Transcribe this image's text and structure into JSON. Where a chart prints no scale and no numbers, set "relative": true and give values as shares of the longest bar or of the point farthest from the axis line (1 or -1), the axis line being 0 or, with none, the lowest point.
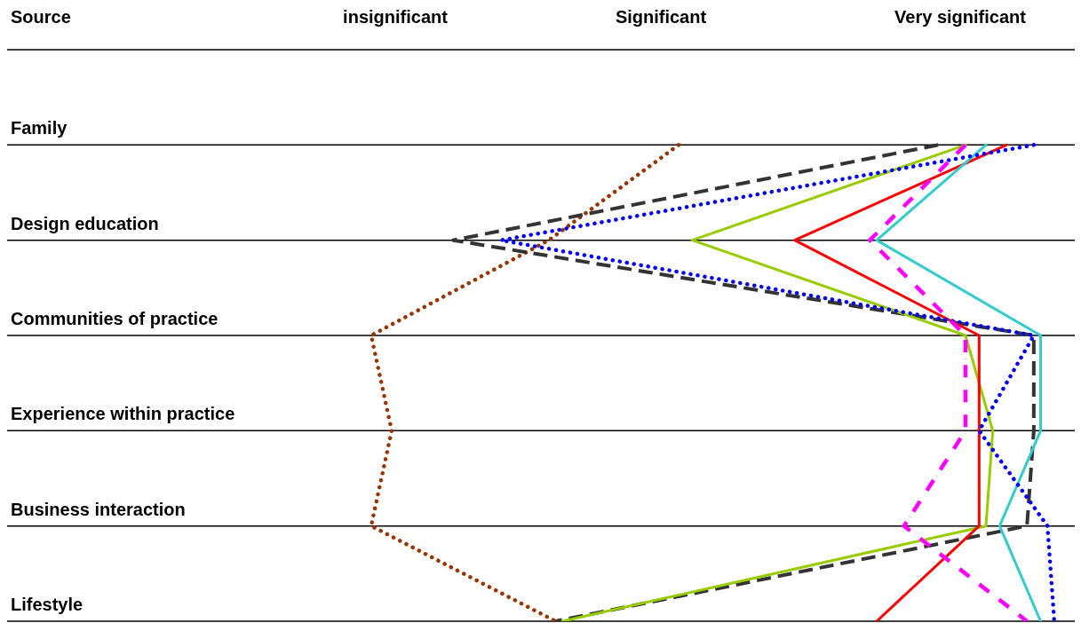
{
  "chart_data": {
    "type": "line",
    "orientation": "horizontal",
    "relative": true,
    "ylabel": "Source",
    "annotations": [
      "insignificant",
      "Significant",
      "Very significant"
    ],
    "categories": [
      "Family",
      "Design education",
      "Communities of practice",
      "Experience within practice",
      "Business interaction",
      "Lifestyle"
    ],
    "grid": "y",
    "marker": "none",
    "legend": false,
    "series": [
      {
        "color": "#993300",
        "line_style": "dotted",
        "values": [
          0.45,
          0.26,
          0.0,
          0.03,
          0.0,
          0.27
        ]
      },
      {
        "color": "#333333",
        "line_style": "dashed",
        "values": [
          0.83,
          0.12,
          0.97,
          0.97,
          0.96,
          0.27
        ]
      },
      {
        "color": "#99cc00",
        "line_style": "solid",
        "values": [
          0.87,
          0.47,
          0.87,
          0.91,
          0.9,
          0.28
        ]
      },
      {
        "color": "#ff0000",
        "line_style": "solid",
        "values": [
          0.93,
          0.62,
          0.89,
          0.89,
          0.89,
          0.74
        ]
      },
      {
        "color": "#33cccc",
        "line_style": "solid",
        "values": [
          0.9,
          0.74,
          0.98,
          0.98,
          0.92,
          0.98
        ]
      },
      {
        "color": "#0000ff",
        "line_style": "dotted",
        "values": [
          0.97,
          0.19,
          0.97,
          0.89,
          0.99,
          1
        ]
      },
      {
        "color": "#ff00ff",
        "line_style": "dashdot",
        "values": [
          0.87,
          0.73,
          0.87,
          0.87,
          0.78,
          0.96
        ]
      }
    ]
  }
}
